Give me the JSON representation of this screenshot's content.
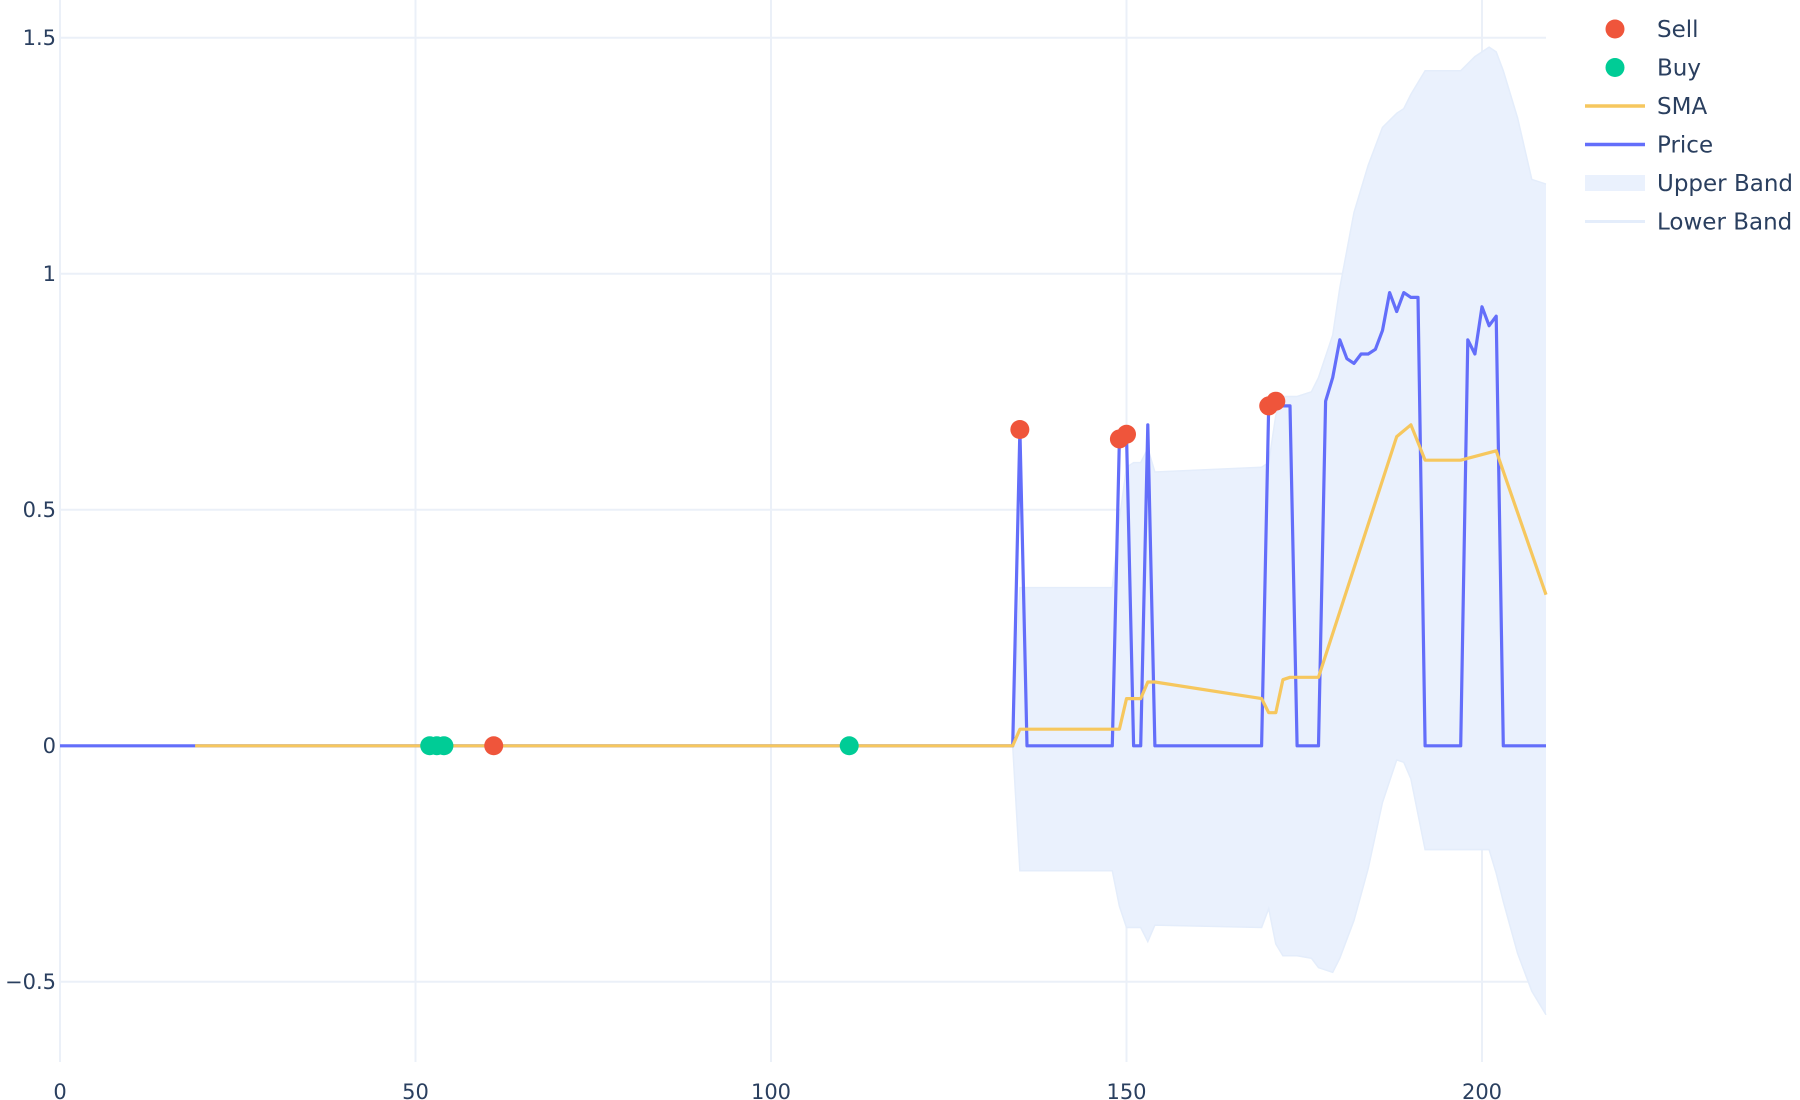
{
  "chart_data": {
    "type": "line",
    "title": "",
    "xlabel": "",
    "ylabel": "",
    "xlim": [
      0,
      209
    ],
    "ylim": [
      -0.67,
      1.58
    ],
    "x_ticks": [
      0,
      50,
      100,
      150,
      200
    ],
    "x_tick_labels": [
      "0",
      "50",
      "100",
      "150",
      "200"
    ],
    "y_ticks": [
      1.5,
      1,
      0.5,
      0,
      -0.5
    ],
    "y_tick_labels": [
      "1.5",
      "1",
      "0.5",
      "0",
      "−0.5"
    ],
    "grid": true,
    "legend_position": "top-right",
    "legend": [
      "Sell",
      "Buy",
      "SMA",
      "Price",
      "Upper Band",
      "Lower Band"
    ],
    "colors": {
      "sell": "#EF553B",
      "buy": "#00CC96",
      "sma": "#F6C75E",
      "price": "#636EFA",
      "band_fill": "#EAF1FD",
      "band_line": "#E4EDFB",
      "grid": "#EBF0F8",
      "zeroline": "#EBF0F8",
      "tick_text": "#2a3f5f"
    },
    "series": [
      {
        "name": "Price",
        "x": [
          0,
          134,
          135,
          136,
          148,
          149,
          150,
          151,
          152,
          153,
          154,
          169,
          170,
          171,
          172,
          173,
          174,
          177,
          178,
          179,
          180,
          181,
          182,
          183,
          184,
          185,
          186,
          187,
          188,
          189,
          190,
          191,
          192,
          197,
          198,
          199,
          200,
          201,
          202,
          203,
          209
        ],
        "y": [
          0,
          0,
          0.67,
          0,
          0,
          0.65,
          0.66,
          0,
          0,
          0.68,
          0,
          0,
          0.72,
          0.73,
          0.72,
          0.72,
          0,
          0,
          0.73,
          0.78,
          0.86,
          0.82,
          0.81,
          0.83,
          0.83,
          0.84,
          0.88,
          0.96,
          0.92,
          0.96,
          0.95,
          0.95,
          0,
          0,
          0.86,
          0.83,
          0.93,
          0.89,
          0.91,
          0,
          0
        ]
      },
      {
        "name": "SMA",
        "x": [
          19,
          134,
          135,
          149,
          150,
          151,
          152,
          153,
          154,
          169,
          170,
          171,
          172,
          173,
          174,
          175,
          176,
          177,
          188,
          190,
          192,
          197,
          202,
          209
        ],
        "y": [
          0,
          0,
          0.035,
          0.035,
          0.1,
          0.1,
          0.1,
          0.135,
          0.135,
          0.1,
          0.07,
          0.07,
          0.14,
          0.145,
          0.145,
          0.145,
          0.145,
          0.145,
          0.655,
          0.68,
          0.605,
          0.605,
          0.625,
          0.32
        ]
      },
      {
        "name": "Upper Band",
        "x": [
          134,
          135,
          148,
          149,
          150,
          151,
          152,
          153,
          154,
          169,
          170,
          171,
          172,
          173,
          174,
          176,
          177,
          179,
          180,
          182,
          184,
          186,
          188,
          189,
          190,
          192,
          193,
          197,
          199,
          201,
          202,
          203,
          205,
          207,
          209
        ],
        "y": [
          0,
          0.335,
          0.335,
          0.48,
          0.59,
          0.6,
          0.6,
          0.63,
          0.58,
          0.59,
          0.6,
          0.7,
          0.74,
          0.74,
          0.74,
          0.75,
          0.78,
          0.87,
          0.97,
          1.13,
          1.23,
          1.31,
          1.34,
          1.35,
          1.38,
          1.43,
          1.43,
          1.43,
          1.46,
          1.48,
          1.47,
          1.43,
          1.33,
          1.2,
          1.19
        ]
      },
      {
        "name": "Lower Band",
        "x": [
          134,
          135,
          148,
          149,
          150,
          151,
          152,
          153,
          154,
          169,
          170,
          171,
          172,
          173,
          174,
          176,
          177,
          179,
          180,
          182,
          184,
          186,
          188,
          189,
          190,
          192,
          193,
          197,
          199,
          201,
          202,
          203,
          205,
          207,
          209
        ],
        "y": [
          0,
          -0.265,
          -0.265,
          -0.34,
          -0.385,
          -0.385,
          -0.385,
          -0.415,
          -0.38,
          -0.385,
          -0.345,
          -0.42,
          -0.445,
          -0.445,
          -0.445,
          -0.45,
          -0.47,
          -0.48,
          -0.45,
          -0.37,
          -0.26,
          -0.12,
          -0.03,
          -0.035,
          -0.07,
          -0.22,
          -0.22,
          -0.22,
          -0.22,
          -0.22,
          -0.27,
          -0.33,
          -0.44,
          -0.52,
          -0.57
        ]
      },
      {
        "name": "Sell",
        "marker": "circle",
        "x": [
          61,
          135,
          149,
          150,
          170,
          171
        ],
        "y": [
          0,
          0.67,
          0.65,
          0.66,
          0.72,
          0.73
        ]
      },
      {
        "name": "Buy",
        "marker": "circle",
        "x": [
          52,
          53,
          54,
          111
        ],
        "y": [
          0,
          0,
          0,
          0
        ]
      }
    ]
  }
}
